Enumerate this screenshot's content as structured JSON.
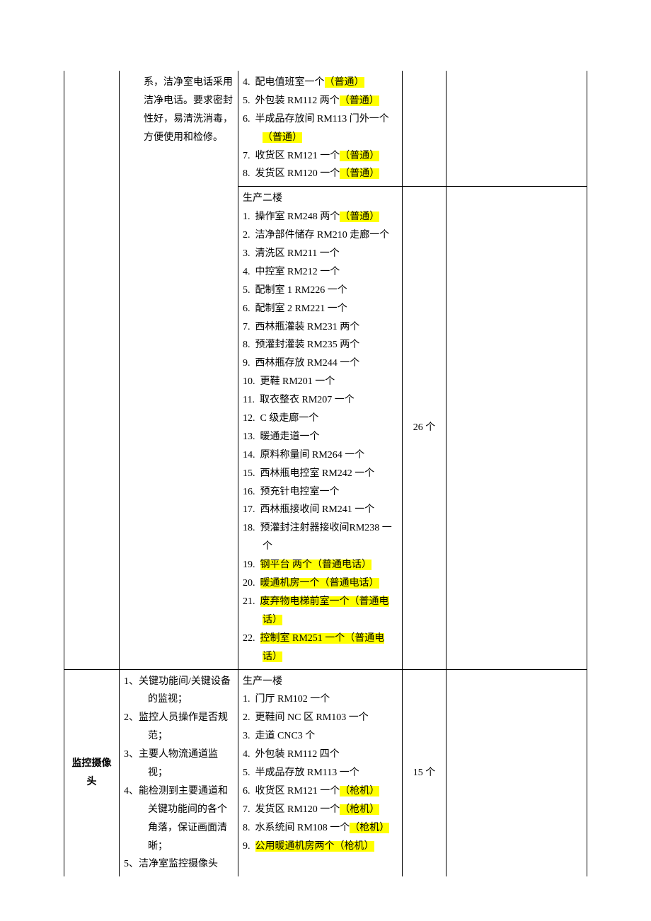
{
  "highlight_color": "#ffff00",
  "rows": {
    "r1": {
      "col2": [
        {
          "num": "",
          "text": "系，洁净室电话采用洁净电话。要求密封性好，易清洗消毒，方便使用和检修。",
          "type": "plain"
        }
      ],
      "col3": [
        {
          "num": "4.",
          "pre": "配电值班室一个",
          "hl": "（普通）"
        },
        {
          "num": "5.",
          "pre": "外包装 RM112 两个",
          "hl": "（普通）"
        },
        {
          "num": "6.",
          "pre": "半成品存放间 RM113 门外一个",
          "hl": "（普通）",
          "wrap": true
        },
        {
          "num": "7.",
          "pre": "收货区 RM121 一个",
          "hl": "（普通）"
        },
        {
          "num": "8.",
          "pre": "发货区 RM120 一个",
          "hl": "（普通）"
        }
      ]
    },
    "r2": {
      "col3_header": "生产二楼",
      "col3": [
        {
          "num": "1.",
          "pre": "操作室 RM248 两个",
          "hl": "（普通）"
        },
        {
          "num": "2.",
          "pre": "洁净部件储存 RM210 走廊一个",
          "wrap": true
        },
        {
          "num": "3.",
          "pre": "清洗区 RM211 一个"
        },
        {
          "num": "4.",
          "pre": "中控室 RM212 一个"
        },
        {
          "num": "5.",
          "pre": "配制室 1 RM226 一个"
        },
        {
          "num": "6.",
          "pre": "配制室 2 RM221 一个"
        },
        {
          "num": "7.",
          "pre": "西林瓶灌装 RM231 两个"
        },
        {
          "num": "8.",
          "pre": "预灌封灌装 RM235 两个"
        },
        {
          "num": "9.",
          "pre": "西林瓶存放 RM244 一个"
        },
        {
          "num": "10.",
          "pre": "更鞋 RM201 一个"
        },
        {
          "num": "11.",
          "pre": "取衣整衣 RM207 一个"
        },
        {
          "num": "12.",
          "pre": "C 级走廊一个"
        },
        {
          "num": "13.",
          "pre": "暖通走道一个"
        },
        {
          "num": "14.",
          "pre": "原料称量间 RM264 一个"
        },
        {
          "num": "15.",
          "pre": "西林瓶电控室 RM242 一个"
        },
        {
          "num": "16.",
          "pre": "预充针电控室一个"
        },
        {
          "num": "17.",
          "pre": "西林瓶接收间 RM241 一个"
        },
        {
          "num": "18.",
          "pre": "预灌封注射器接收间RM238 一个",
          "wrap": true
        },
        {
          "num": "19.",
          "hl_full": "钢平台 两个（普通电话）"
        },
        {
          "num": "20.",
          "hl_full": "暖通机房一个（普通电话）"
        },
        {
          "num": "21.",
          "hl_full": "废弃物电梯前室一个（普通电话）",
          "wrap": true
        },
        {
          "num": "22.",
          "hl_full": "控制室 RM251 一个（普通电话）",
          "wrap": true
        }
      ],
      "col4": "26 个"
    },
    "r3": {
      "col1": "监控摄像头",
      "col2": [
        {
          "num": "1、",
          "text": "关键功能间/关键设备的监视；"
        },
        {
          "num": "2、",
          "text": "监控人员操作是否规范；"
        },
        {
          "num": "3、",
          "text": "主要人物流通道监视；"
        },
        {
          "num": "4、",
          "text": "能检测到主要通道和关键功能间的各个角落，保证画面清晰；"
        },
        {
          "num": "5、",
          "text": "洁净室监控摄像头"
        }
      ],
      "col3_header": "生产一楼",
      "col3": [
        {
          "num": "1.",
          "pre": "门厅 RM102 一个"
        },
        {
          "num": "2.",
          "pre": "更鞋间 NC 区 RM103 一个"
        },
        {
          "num": "3.",
          "pre": "走道 CNC3 个"
        },
        {
          "num": "4.",
          "pre": "外包装 RM112 四个"
        },
        {
          "num": "5.",
          "pre": "半成品存放 RM113 一个"
        },
        {
          "num": "6.",
          "pre": "收货区 RM121 一个",
          "hl": "（枪机）"
        },
        {
          "num": "7.",
          "pre": "发货区 RM120 一个",
          "hl": "（枪机）"
        },
        {
          "num": "8.",
          "pre": "水系统间 RM108 一个",
          "hl": "（枪机）",
          "wrap": true
        },
        {
          "num": "9.",
          "hl_full": "公用暖通机房两个（枪机）"
        }
      ],
      "col4": "15 个"
    }
  }
}
